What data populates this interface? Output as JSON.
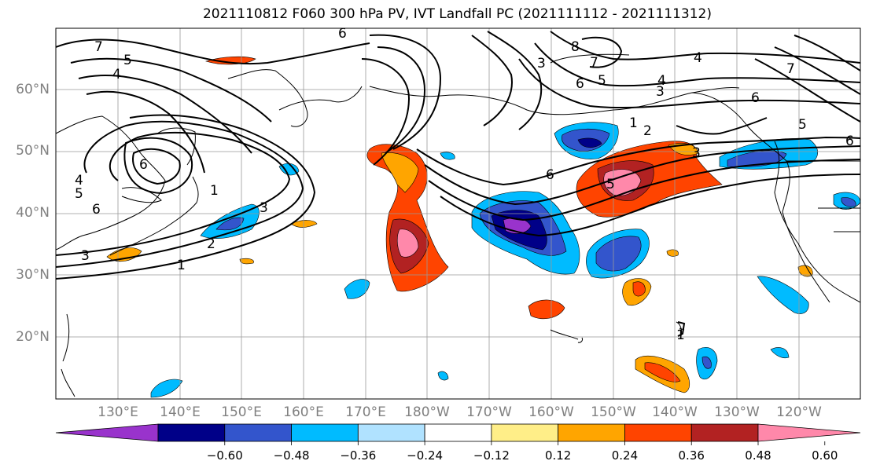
{
  "title": "2021110812 F060 300 hPa PV, IVT Landfall PC (2021111112 - 2021111312)",
  "lat_labels": [
    "60°N",
    "50°N",
    "40°N",
    "30°N",
    "20°N"
  ],
  "lon_labels": [
    "130°E",
    "140°E",
    "150°E",
    "160°E",
    "170°E",
    "180°W",
    "170°W",
    "160°W",
    "150°W",
    "140°W",
    "130°W",
    "120°W"
  ],
  "contour_labels": [
    "1",
    "2",
    "3",
    "4",
    "5",
    "6",
    "7",
    "8"
  ],
  "colorbar": {
    "ticks": [
      "−0.60",
      "−0.48",
      "−0.36",
      "−0.24",
      "−0.12",
      "0.12",
      "0.24",
      "0.36",
      "0.48",
      "0.60"
    ],
    "colors": [
      "#9933cc",
      "#000088",
      "#3355cc",
      "#00bbff",
      "#b0e2ff",
      "#ffffff",
      "#ffee88",
      "#ffa500",
      "#ff4400",
      "#b22222",
      "#ff88aa"
    ]
  }
}
